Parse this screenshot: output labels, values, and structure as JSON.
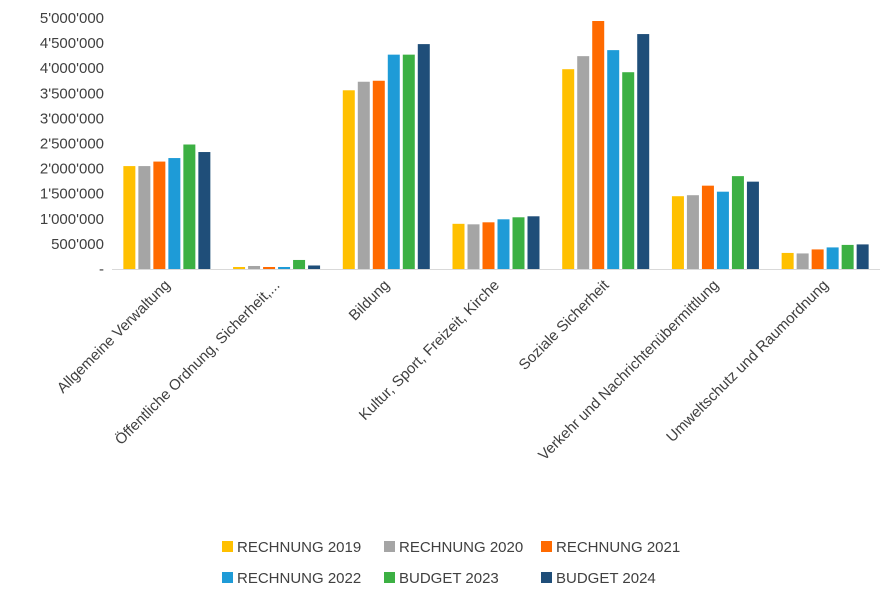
{
  "chart_data": {
    "type": "bar",
    "categories": [
      "Allgemeine Verwaltung",
      "Öffentliche Ordnung, Sicherheit,...",
      "Bildung",
      "Kultur, Sport, Freizeit, Kirche",
      "Soziale Sicherheit",
      "Verkehr und Nachrichtenübermittlung",
      "Umweltschutz und Raumordnung"
    ],
    "series": [
      {
        "name": "RECHNUNG 2019",
        "color": "#FFC000",
        "values": [
          2050000,
          40000,
          3560000,
          900000,
          3980000,
          1450000,
          320000
        ]
      },
      {
        "name": "RECHNUNG 2020",
        "color": "#A5A5A5",
        "values": [
          2050000,
          60000,
          3730000,
          890000,
          4240000,
          1470000,
          310000
        ]
      },
      {
        "name": "RECHNUNG 2021",
        "color": "#FF6A00",
        "values": [
          2140000,
          40000,
          3750000,
          930000,
          4940000,
          1660000,
          390000
        ]
      },
      {
        "name": "RECHNUNG 2022",
        "color": "#1E9BD7",
        "values": [
          2210000,
          40000,
          4270000,
          990000,
          4360000,
          1540000,
          430000
        ]
      },
      {
        "name": "BUDGET 2023",
        "color": "#3CB043",
        "values": [
          2480000,
          180000,
          4270000,
          1030000,
          3920000,
          1850000,
          480000
        ]
      },
      {
        "name": "BUDGET 2024",
        "color": "#1F4E79",
        "values": [
          2330000,
          70000,
          4480000,
          1050000,
          4680000,
          1740000,
          490000
        ]
      }
    ],
    "ylim": [
      0,
      5000000
    ],
    "yticks": [
      "-",
      "500'000",
      "1'000'000",
      "1'500'000",
      "2'000'000",
      "2'500'000",
      "3'000'000",
      "3'500'000",
      "4'000'000",
      "4'500'000",
      "5'000'000"
    ],
    "grid": false,
    "legend_position": "bottom",
    "title": "",
    "xlabel": "",
    "ylabel": ""
  }
}
